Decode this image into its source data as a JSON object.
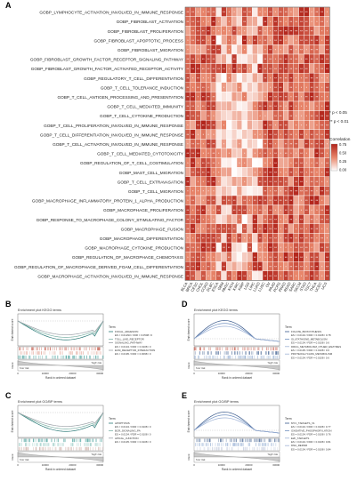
{
  "panel_a": {
    "letter": "A",
    "rows": [
      "GOBP_LYMPHOCYTE_ACTIVATION_INVOLVED_IN_IMMUNE_RESPONSE",
      "GOBP_FIBROBLAST_ACTIVATION",
      "GOBP_FIBROBLAST_PROLIFERATION",
      "GOBP_FIBROBLAST_APOPTOTIC_PROCESS",
      "GOBP_FIBROBLAST_MIGRATION",
      "GOBP_FIBROBLAST_GROWTH_FACTOR_RECEPTOR_SIGNALING_PATHWAY",
      "GOBP_FIBROBLAST_GROWTH_FACTOR_ACTIVATED_RECEPTOR_ACTIVITY",
      "GOBP_REGULATORY_T_CELL_DIFFERENTIATION",
      "GOBP_T_CELL_TOLERANCE_INDUCTION",
      "GOBP_T_CELL_ANTIGEN_PROCESSING_AND_PRESENTATION",
      "GOBP_T_CELL_MEDIATED_IMMUNITY",
      "GOBP_T_CELL_CYTOKINE_PRODUCTION",
      "GOBP_T_CELL_PROLIFERATION_INVOLVED_IN_IMMUNE_RESPONSE",
      "GOBP_T_CELL_DIFFERENTIATION_INVOLVED_IN_IMMUNE_RESPONSE",
      "GOBP_T_CELL_ACTIVATION_INVOLVED_IN_IMMUNE_RESPONSE",
      "GOBP_T_CELL_MEDIATED_CYTOTOXICITY",
      "GOBP_REGULATION_OF_T_CELL_COSTIMULATION",
      "GOBP_MAST_CELL_MIGRATION",
      "GOBP_T_CELL_EXTRAVASATION",
      "GOBP_T_CELL_MIGRATION",
      "GOBP_MACROPHAGE_INFLAMMATORY_PROTEIN_1_ALPHA_PRODUCTION",
      "GOBP_MACROPHAGE_PROLIFERATION",
      "GOBP_RESPONSE_TO_MACROPHAGE_COLONY_STIMULATING_FACTOR",
      "GOBP_MACROPHAGE_FUSION",
      "GOBP_MACROPHAGE_DIFFERENTIATION",
      "GOBP_MACROPHAGE_CYTOKINE_PRODUCTION",
      "GOBP_REGULATION_OF_MACROPHAGE_CHEMOTAXIS",
      "GOBP_REGULATION_OF_MACROPHAGE_DERIVED_FOAM_CELL_DIFFERENTIATION",
      "GOBP_MACROPHAGE_ACTIVATION_INVOLVED_IN_IMMUNE_RESPONSE"
    ],
    "columns": [
      "BLCA",
      "BRCA",
      "CESC",
      "CHOL",
      "COAD",
      "DLBC",
      "ESCA",
      "GBM",
      "HNSC",
      "KICH",
      "KIRC",
      "KIRP",
      "LGG",
      "LIHC",
      "LUAD",
      "LUSC",
      "OV",
      "PAAD",
      "PCPG",
      "PRAD",
      "READ",
      "SARC",
      "SKCM",
      "STAD",
      "TGCT",
      "THCA",
      "UCEC",
      "UCS"
    ],
    "legend_title": "Correlation",
    "legend_ticks": [
      "0.75",
      "0.50",
      "0.25",
      "0.00"
    ],
    "sig_labels": [
      "* p < 0.05",
      "** p < 0.01"
    ],
    "colors": {
      "high": "#b2241b",
      "mid": "#e8856a",
      "low": "#ffffff"
    }
  },
  "gsea_panels": [
    {
      "letter": "B",
      "title": "Enrichment plot KEGG terms",
      "ylabel": "Enrichment score",
      "xlabel": "Rank in ordered dataset",
      "xticks": [
        "0",
        "10000",
        "20000",
        "30000"
      ],
      "low_tag": "'low' risk",
      "high_tag": "'high' risk",
      "legend_title": "Term",
      "terms": [
        "FOCAL_ADHESION",
        "ES = 0.01293 / FDR = 0.0508 / 0",
        "TOLL_LIKE_RECEPTOR",
        "SIGNALING_PATHWAY",
        "ES = 0.0134 / FDR = 0.0108 / 0",
        "ECM_RECEPTOR_INTERACTION",
        "ES = 0.0195 / FDR = 0.0098 / 0"
      ],
      "line_colors": [
        "#2b7a78",
        "#7fb3a8",
        "#9aa0a6"
      ],
      "tick_colors": [
        "#c45a4a",
        "#e3a79a",
        "#3a9a94"
      ],
      "curve": "down"
    },
    {
      "letter": "C",
      "title": "Enrichment plot GO/BP terms",
      "ylabel": "Enrichment score",
      "xlabel": "Rank in ordered dataset",
      "xticks": [
        "0",
        "10000",
        "20000",
        "30000"
      ],
      "low_tag": "'low' risk",
      "high_tag": "'high' risk",
      "legend_title": "Term",
      "terms": [
        "APOPTOSIS",
        "ES = 0.0134 / FDR = 0.0108 / 0",
        "BCR_SIGNALING_PA",
        "ES = 0.0134 / FDR = 0.0108 / 0",
        "APICAL_JUNCTION",
        "ES = 0.0135 / FDR = 0.0108 / 0"
      ],
      "line_colors": [
        "#2b7a78",
        "#7fb3a8",
        "#9aa0a6"
      ],
      "tick_colors": [
        "#3a9a94",
        "#8ec5bf",
        "#c7a59b"
      ],
      "curve": "down"
    },
    {
      "letter": "D",
      "title": "Enrichment plot KEGG terms",
      "ylabel": "Enrichment score",
      "xlabel": "Rank in ordered dataset",
      "xticks": [
        "0",
        "10000",
        "20000",
        "30000"
      ],
      "low_tag": "'low' risk",
      "high_tag": "'high' risk",
      "legend_title": "Term",
      "terms": [
        "FOLATE_BIOSYNTHESIS",
        "ES = 0.0134 / FDR = 0.0108 / 0.78",
        "GLUTATHIONE_METABOLISM",
        "ES = 0.0134 / FDR = 0.0108 / 0.6",
        "DRUG_METABOLISM_OTHER_ENZYMES",
        "ES = 0.0135 / FDR = 0.0108 / 0.6",
        "PROTEOGLYCANS_METABOLISM",
        "ES = 0.0134 / FDR = 0.0108 / 0.6"
      ],
      "line_colors": [
        "#3a5a8c",
        "#6f8fbf",
        "#9fb3d6"
      ],
      "tick_colors": [
        "#c45a4a",
        "#3a5a8c",
        "#8aa6cf"
      ],
      "curve": "up"
    },
    {
      "letter": "E",
      "title": "Enrichment plot GO/BP terms",
      "ylabel": "Enrichment score",
      "xlabel": "Rank in ordered dataset",
      "xticks": [
        "0",
        "10000",
        "20000",
        "30000"
      ],
      "low_tag": "'low' risk",
      "high_tag": "'high' risk",
      "legend_title": "Term",
      "terms": [
        "MYC_TARGETS_V1",
        "ES = 0.0134 / FDR = 0.0108 / 0.77",
        "OXIDATIVE_PHOSPHORYLATION",
        "ES = 0.0134 / FDR = 0.0108 / 0.76",
        "E2F_TARGETS",
        "ES = 0.0134 / FDR = 0.0108 / 0.81",
        "DNA_REPAIR",
        "ES = 0.0134 / FDR = 0.0108 / 0.84"
      ],
      "line_colors": [
        "#3a5a8c",
        "#6f8fbf",
        "#9fb3d6"
      ],
      "tick_colors": [
        "#3a5a8c",
        "#8aa6cf",
        "#c7cfdf"
      ],
      "curve": "up"
    }
  ],
  "chart_data": [
    {
      "type": "heatmap",
      "rows": "see panel_a.rows",
      "columns": "see panel_a.columns",
      "legend_range": [
        0.0,
        0.75
      ],
      "significance": [
        "* p < 0.05",
        "** p < 0.01"
      ]
    },
    {
      "type": "line",
      "panel": "B",
      "ylabel": "Enrichment score",
      "xlabel": "Rank in ordered dataset",
      "xticks": [
        0,
        10000,
        20000,
        30000
      ]
    },
    {
      "type": "line",
      "panel": "C",
      "ylabel": "Enrichment score",
      "xlabel": "Rank in ordered dataset",
      "xticks": [
        0,
        10000,
        20000,
        30000
      ]
    },
    {
      "type": "line",
      "panel": "D",
      "ylabel": "Enrichment score",
      "xlabel": "Rank in ordered dataset",
      "xticks": [
        0,
        10000,
        20000,
        30000
      ]
    },
    {
      "type": "line",
      "panel": "E",
      "ylabel": "Enrichment score",
      "xlabel": "Rank in ordered dataset",
      "xticks": [
        0,
        10000,
        20000,
        30000
      ]
    }
  ]
}
